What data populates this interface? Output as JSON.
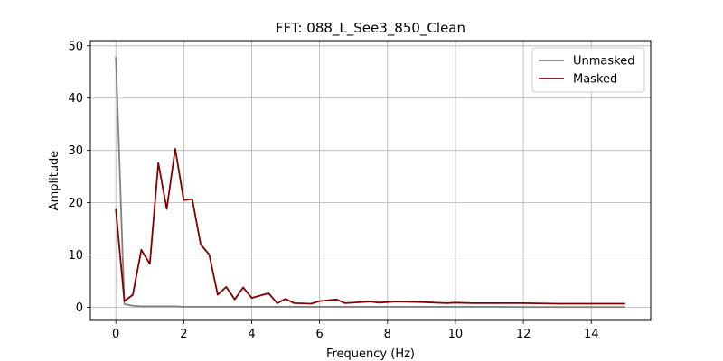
{
  "chart_data": {
    "type": "line",
    "title": "FFT: 088_L_See3_850_Clean",
    "xlabel": "Frequency (Hz)",
    "ylabel": "Amplitude",
    "xlim": [
      -0.75,
      15.75
    ],
    "ylim": [
      -2.5,
      51
    ],
    "xticks": [
      0,
      2,
      4,
      6,
      8,
      10,
      12,
      14
    ],
    "yticks": [
      0,
      10,
      20,
      30,
      40,
      50
    ],
    "grid": true,
    "legend_position": "top-right",
    "series": [
      {
        "name": "Unmasked",
        "color": "#808080",
        "x": [
          0,
          0.25,
          0.5,
          0.75,
          1.0,
          1.25,
          1.5,
          1.75,
          2.0,
          2.5,
          3.0,
          4.0,
          5.0,
          6.0,
          7.0,
          8.0,
          9.0,
          10.0,
          11.0,
          12.0,
          13.0,
          14.0,
          15.0
        ],
        "y": [
          47.9,
          0.6,
          0.3,
          0.2,
          0.2,
          0.2,
          0.2,
          0.2,
          0.1,
          0.1,
          0.1,
          0.1,
          0.1,
          0.1,
          0.1,
          0.1,
          0.1,
          0.1,
          0.1,
          0.05,
          0.05,
          0.05,
          0.05
        ]
      },
      {
        "name": "Masked",
        "color": "#800000",
        "x": [
          0,
          0.25,
          0.5,
          0.75,
          1.0,
          1.25,
          1.5,
          1.75,
          2.0,
          2.25,
          2.5,
          2.75,
          3.0,
          3.25,
          3.5,
          3.75,
          4.0,
          4.5,
          4.75,
          5.0,
          5.25,
          5.75,
          6.0,
          6.5,
          6.75,
          7.5,
          7.75,
          8.25,
          9.0,
          9.75,
          10.0,
          10.5,
          11.0,
          12.0,
          13.0,
          14.0,
          15.0
        ],
        "y": [
          18.8,
          1.2,
          2.4,
          11.0,
          8.3,
          27.6,
          18.8,
          30.3,
          20.5,
          20.7,
          12.0,
          10.1,
          2.4,
          3.9,
          1.5,
          3.8,
          1.8,
          2.7,
          0.8,
          1.6,
          0.8,
          0.7,
          1.2,
          1.5,
          0.8,
          1.1,
          0.9,
          1.1,
          1.0,
          0.8,
          0.9,
          0.8,
          0.8,
          0.8,
          0.7,
          0.7,
          0.7
        ]
      }
    ]
  }
}
